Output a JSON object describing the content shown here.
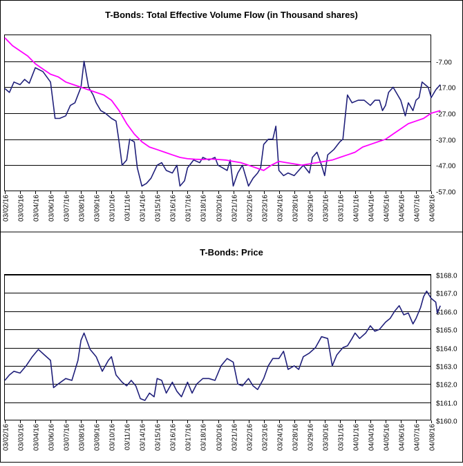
{
  "chart_data": [
    {
      "type": "line",
      "title": "T-Bonds: Total Effective Volume Flow (in Thousand shares)",
      "ylim": [
        -57,
        3
      ],
      "y_ticks": [
        -7,
        -17,
        -27,
        -37,
        -47,
        -57
      ],
      "y_tick_labels": [
        "-7.00",
        "-17.00",
        "-27.00",
        "-37.00",
        "-47.00",
        "-57.00"
      ],
      "y_axis_side": "right",
      "grid": "horizontal",
      "categories": [
        "03/02/16",
        "03/03/16",
        "03/04/16",
        "03/06/16",
        "03/07/16",
        "03/08/16",
        "03/09/16",
        "03/10/16",
        "03/11/16",
        "03/14/16",
        "03/15/16",
        "03/16/16",
        "03/17/16",
        "03/18/16",
        "03/20/16",
        "03/21/16",
        "03/22/16",
        "03/23/16",
        "03/24/16",
        "03/28/16",
        "03/29/16",
        "03/30/16",
        "03/31/16",
        "04/01/16",
        "04/04/16",
        "04/05/16",
        "04/06/16",
        "04/07/16",
        "04/08/16"
      ],
      "series": [
        {
          "name": "",
          "color": "#1f1f7a",
          "values": [
            [
              0,
              -17.5
            ],
            [
              0.3,
              -19
            ],
            [
              0.6,
              -15
            ],
            [
              1,
              -16
            ],
            [
              1.3,
              -14
            ],
            [
              1.6,
              -15.5
            ],
            [
              2,
              -9.5
            ],
            [
              2.5,
              -11
            ],
            [
              3,
              -15
            ],
            [
              3.3,
              -29
            ],
            [
              3.6,
              -29
            ],
            [
              4,
              -28
            ],
            [
              4.3,
              -24
            ],
            [
              4.6,
              -23
            ],
            [
              4.8,
              -20
            ],
            [
              5,
              -17
            ],
            [
              5.2,
              -7
            ],
            [
              5.5,
              -17
            ],
            [
              5.8,
              -20
            ],
            [
              6,
              -23
            ],
            [
              6.3,
              -26
            ],
            [
              6.6,
              -27
            ],
            [
              7,
              -29
            ],
            [
              7.3,
              -30
            ],
            [
              7.5,
              -38
            ],
            [
              7.7,
              -47
            ],
            [
              8,
              -45
            ],
            [
              8.2,
              -37
            ],
            [
              8.5,
              -38
            ],
            [
              8.7,
              -48
            ],
            [
              9,
              -55
            ],
            [
              9.3,
              -54
            ],
            [
              9.6,
              -52
            ],
            [
              10,
              -47
            ],
            [
              10.3,
              -46
            ],
            [
              10.6,
              -49
            ],
            [
              11,
              -50
            ],
            [
              11.3,
              -47
            ],
            [
              11.5,
              -55
            ],
            [
              11.8,
              -53
            ],
            [
              12,
              -48
            ],
            [
              12.4,
              -45
            ],
            [
              12.8,
              -46
            ],
            [
              13,
              -44
            ],
            [
              13.4,
              -45
            ],
            [
              13.8,
              -44
            ],
            [
              14,
              -47
            ],
            [
              14.3,
              -48
            ],
            [
              14.6,
              -49
            ],
            [
              14.8,
              -45
            ],
            [
              15,
              -55
            ],
            [
              15.3,
              -50
            ],
            [
              15.6,
              -47
            ],
            [
              16,
              -55
            ],
            [
              16.3,
              -52
            ],
            [
              16.6,
              -50
            ],
            [
              16.8,
              -48
            ],
            [
              17,
              -39
            ],
            [
              17.3,
              -37
            ],
            [
              17.6,
              -37
            ],
            [
              17.8,
              -32
            ],
            [
              18,
              -49
            ],
            [
              18.3,
              -51
            ],
            [
              18.6,
              -50
            ],
            [
              19,
              -51
            ],
            [
              19.3,
              -49
            ],
            [
              19.6,
              -47
            ],
            [
              20,
              -50
            ],
            [
              20.2,
              -44
            ],
            [
              20.5,
              -42
            ],
            [
              20.8,
              -47
            ],
            [
              21,
              -51
            ],
            [
              21.2,
              -43
            ],
            [
              21.6,
              -41
            ],
            [
              22,
              -38
            ],
            [
              22.2,
              -37
            ],
            [
              22.5,
              -20
            ],
            [
              22.8,
              -23
            ],
            [
              23.2,
              -22
            ],
            [
              23.6,
              -22
            ],
            [
              24,
              -24
            ],
            [
              24.3,
              -22
            ],
            [
              24.6,
              -22
            ],
            [
              24.8,
              -26
            ],
            [
              25,
              -24
            ],
            [
              25.2,
              -19
            ],
            [
              25.5,
              -17
            ],
            [
              25.7,
              -19
            ],
            [
              26,
              -22
            ],
            [
              26.3,
              -28
            ],
            [
              26.5,
              -23
            ],
            [
              26.8,
              -26
            ],
            [
              27,
              -22
            ],
            [
              27.2,
              -21
            ],
            [
              27.4,
              -15
            ],
            [
              27.6,
              -16
            ],
            [
              27.8,
              -17
            ],
            [
              28,
              -21
            ],
            [
              28.3,
              -18
            ],
            [
              28.6,
              -16
            ]
          ]
        },
        {
          "name": "",
          "color": "#ff00ff",
          "values": [
            [
              0,
              2
            ],
            [
              0.5,
              -1
            ],
            [
              1,
              -3
            ],
            [
              1.5,
              -5
            ],
            [
              2,
              -8
            ],
            [
              2.5,
              -10
            ],
            [
              3,
              -12
            ],
            [
              3.5,
              -13
            ],
            [
              4,
              -15
            ],
            [
              4.5,
              -16
            ],
            [
              5,
              -17
            ],
            [
              5.5,
              -18
            ],
            [
              6,
              -19
            ],
            [
              6.5,
              -20
            ],
            [
              7,
              -22
            ],
            [
              7.5,
              -26
            ],
            [
              8,
              -31
            ],
            [
              8.5,
              -35
            ],
            [
              9,
              -38
            ],
            [
              9.5,
              -40
            ],
            [
              10,
              -41
            ],
            [
              10.5,
              -42
            ],
            [
              11,
              -43
            ],
            [
              11.5,
              -44
            ],
            [
              12,
              -44.5
            ],
            [
              12.5,
              -44.7
            ],
            [
              13,
              -44.8
            ],
            [
              13.5,
              -44.6
            ],
            [
              14,
              -44.8
            ],
            [
              14.5,
              -45
            ],
            [
              15,
              -45.5
            ],
            [
              15.5,
              -46
            ],
            [
              16,
              -47
            ],
            [
              16.5,
              -48
            ],
            [
              17,
              -49
            ],
            [
              17.5,
              -47
            ],
            [
              18,
              -45.5
            ],
            [
              18.5,
              -46
            ],
            [
              19,
              -46.5
            ],
            [
              19.5,
              -47
            ],
            [
              20,
              -46.5
            ],
            [
              20.5,
              -46
            ],
            [
              21,
              -45.5
            ],
            [
              21.5,
              -45
            ],
            [
              22,
              -44
            ],
            [
              22.5,
              -43
            ],
            [
              23,
              -42
            ],
            [
              23.5,
              -40
            ],
            [
              24,
              -39
            ],
            [
              24.5,
              -38
            ],
            [
              25,
              -37
            ],
            [
              25.5,
              -35
            ],
            [
              26,
              -33
            ],
            [
              26.5,
              -31
            ],
            [
              27,
              -30
            ],
            [
              27.5,
              -29
            ],
            [
              28,
              -27
            ],
            [
              28.6,
              -26
            ]
          ]
        }
      ]
    },
    {
      "type": "line",
      "title": "T-Bonds: Price",
      "ylim": [
        160,
        168
      ],
      "y_ticks": [
        160,
        161,
        162,
        163,
        164,
        165,
        166,
        167,
        168
      ],
      "y_tick_labels": [
        "$160.0",
        "$161.0",
        "$162.0",
        "$163.0",
        "$164.0",
        "$165.0",
        "$166.0",
        "$167.0",
        "$168.0"
      ],
      "y_axis_side": "right",
      "grid": "horizontal",
      "categories": [
        "03/02/16",
        "03/03/16",
        "03/04/16",
        "03/06/16",
        "03/07/16",
        "03/08/16",
        "03/09/16",
        "03/10/16",
        "03/11/16",
        "03/14/16",
        "03/15/16",
        "03/16/16",
        "03/17/16",
        "03/18/16",
        "03/20/16",
        "03/21/16",
        "03/22/16",
        "03/23/16",
        "03/24/16",
        "03/28/16",
        "03/29/16",
        "03/30/16",
        "03/31/16",
        "04/01/16",
        "04/04/16",
        "04/05/16",
        "04/06/16",
        "04/07/16",
        "04/08/16"
      ],
      "series": [
        {
          "name": "",
          "color": "#1f1f7a",
          "values": [
            [
              0,
              162.2
            ],
            [
              0.3,
              162.5
            ],
            [
              0.6,
              162.7
            ],
            [
              1,
              162.6
            ],
            [
              1.4,
              163.0
            ],
            [
              1.8,
              163.5
            ],
            [
              2.2,
              163.9
            ],
            [
              2.6,
              163.6
            ],
            [
              3,
              163.3
            ],
            [
              3.2,
              161.8
            ],
            [
              3.5,
              162.0
            ],
            [
              4,
              162.3
            ],
            [
              4.4,
              162.2
            ],
            [
              4.8,
              163.3
            ],
            [
              5,
              164.4
            ],
            [
              5.2,
              164.8
            ],
            [
              5.6,
              163.9
            ],
            [
              6,
              163.5
            ],
            [
              6.4,
              162.7
            ],
            [
              6.8,
              163.3
            ],
            [
              7,
              163.5
            ],
            [
              7.3,
              162.5
            ],
            [
              7.7,
              162.1
            ],
            [
              8,
              161.9
            ],
            [
              8.3,
              162.2
            ],
            [
              8.6,
              161.9
            ],
            [
              8.9,
              161.2
            ],
            [
              9.2,
              161.1
            ],
            [
              9.5,
              161.5
            ],
            [
              9.8,
              161.3
            ],
            [
              10,
              162.3
            ],
            [
              10.3,
              162.2
            ],
            [
              10.6,
              161.5
            ],
            [
              11,
              162.1
            ],
            [
              11.3,
              161.6
            ],
            [
              11.6,
              161.3
            ],
            [
              12,
              162.1
            ],
            [
              12.3,
              161.5
            ],
            [
              12.6,
              162.0
            ],
            [
              13,
              162.3
            ],
            [
              13.4,
              162.3
            ],
            [
              13.8,
              162.2
            ],
            [
              14.2,
              163.0
            ],
            [
              14.6,
              163.4
            ],
            [
              15,
              163.2
            ],
            [
              15.3,
              162.0
            ],
            [
              15.6,
              161.9
            ],
            [
              16,
              162.3
            ],
            [
              16.3,
              161.9
            ],
            [
              16.6,
              161.7
            ],
            [
              17,
              162.3
            ],
            [
              17.3,
              163.0
            ],
            [
              17.6,
              163.4
            ],
            [
              18,
              163.4
            ],
            [
              18.3,
              163.8
            ],
            [
              18.6,
              162.8
            ],
            [
              19,
              163.0
            ],
            [
              19.3,
              162.8
            ],
            [
              19.6,
              163.5
            ],
            [
              20,
              163.7
            ],
            [
              20.4,
              164.0
            ],
            [
              20.8,
              164.6
            ],
            [
              21.2,
              164.5
            ],
            [
              21.5,
              163.0
            ],
            [
              21.8,
              163.6
            ],
            [
              22.2,
              164.0
            ],
            [
              22.5,
              164.1
            ],
            [
              22.8,
              164.5
            ],
            [
              23,
              164.8
            ],
            [
              23.3,
              164.5
            ],
            [
              23.7,
              164.8
            ],
            [
              24,
              165.2
            ],
            [
              24.3,
              164.9
            ],
            [
              24.6,
              165.0
            ],
            [
              25,
              165.4
            ],
            [
              25.3,
              165.6
            ],
            [
              25.6,
              166.0
            ],
            [
              25.9,
              166.3
            ],
            [
              26.2,
              165.8
            ],
            [
              26.5,
              165.9
            ],
            [
              26.8,
              165.3
            ],
            [
              27,
              165.6
            ],
            [
              27.3,
              166.2
            ],
            [
              27.5,
              166.8
            ],
            [
              27.7,
              167.1
            ],
            [
              28,
              166.7
            ],
            [
              28.3,
              166.5
            ],
            [
              28.4,
              165.9
            ],
            [
              28.6,
              166.3
            ]
          ]
        }
      ]
    }
  ]
}
